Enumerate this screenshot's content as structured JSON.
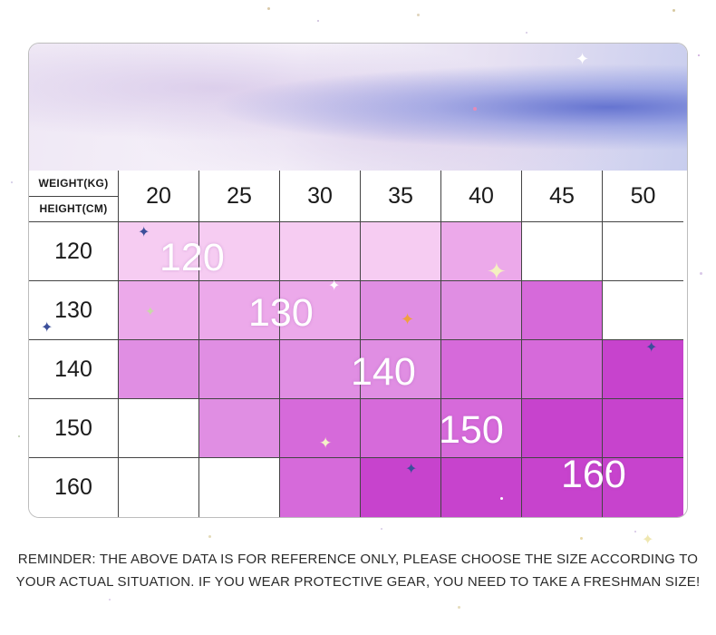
{
  "header": {
    "weight_label": "WEIGHT(KG)",
    "height_label": "HEIGHT(CM)"
  },
  "weights": [
    "20",
    "25",
    "30",
    "35",
    "40",
    "45",
    "50"
  ],
  "heights": [
    "120",
    "130",
    "140",
    "150",
    "160"
  ],
  "size_chart": [
    [
      120,
      120,
      120,
      120,
      130,
      null,
      null
    ],
    [
      130,
      130,
      130,
      140,
      140,
      150,
      null
    ],
    [
      140,
      140,
      140,
      140,
      150,
      150,
      160
    ],
    [
      null,
      140,
      150,
      150,
      150,
      160,
      160
    ],
    [
      null,
      null,
      150,
      160,
      160,
      160,
      160
    ]
  ],
  "overlays": [
    "120",
    "130",
    "140",
    "150",
    "160"
  ],
  "size_colors": {
    "120": "#f6ccf2",
    "130": "#eca9ea",
    "140": "#e08ee3",
    "150": "#d66ada",
    "160": "#c743cd"
  },
  "reminder": {
    "line1": "REMINDER: THE ABOVE DATA IS FOR REFERENCE ONLY, PLEASE CHOOSE THE SIZE ACCORDING TO",
    "line2": "YOUR ACTUAL SITUATION. IF YOU WEAR PROTECTIVE GEAR, YOU NEED TO TAKE A FRESHMAN SIZE!"
  }
}
